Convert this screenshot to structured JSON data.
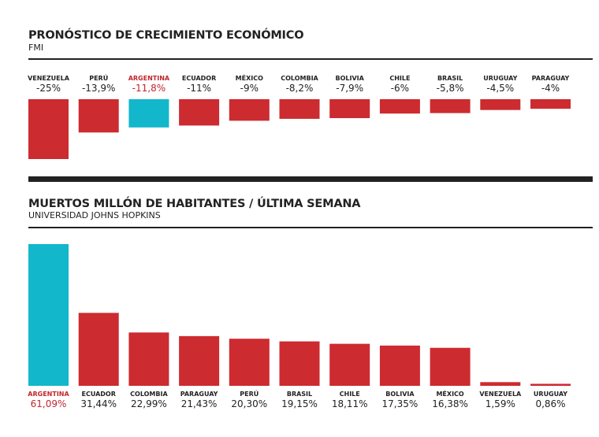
{
  "colors": {
    "bar": "#cc2b30",
    "highlight_bar": "#12b7cc",
    "highlight_text": "#c0272d",
    "rule": "#222222"
  },
  "chart_data": [
    {
      "type": "bar",
      "title": "PRONÓSTICO DE CRECIMIENTO ECONÓMICO",
      "subtitle": "FMI",
      "orientation": "vertical-negative",
      "highlight": "ARGENTINA",
      "categories": [
        "VENEZUELA",
        "PERÚ",
        "ARGENTINA",
        "ECUADOR",
        "MÉXICO",
        "COLOMBIA",
        "BOLIVIA",
        "CHILE",
        "BRASIL",
        "URUGUAY",
        "PARAGUAY"
      ],
      "values": [
        -25,
        -13.9,
        -11.8,
        -11,
        -9,
        -8.2,
        -7.9,
        -6,
        -5.8,
        -4.5,
        -4
      ],
      "value_labels": [
        "-25%",
        "-13,9%",
        "-11,8%",
        "-11%",
        "-9%",
        "-8,2%",
        "-7,9%",
        "-6%",
        "-5,8%",
        "-4,5%",
        "-4%"
      ],
      "ylim": [
        -25,
        0
      ]
    },
    {
      "type": "bar",
      "title": "MUERTOS MILLÓN DE HABITANTES / ÚLTIMA SEMANA",
      "subtitle": "UNIVERSIDAD JOHNS HOPKINS",
      "highlight": "ARGENTINA",
      "categories": [
        "ARGENTINA",
        "ECUADOR",
        "COLOMBIA",
        "PARAGUAY",
        "PERÚ",
        "BRASIL",
        "CHILE",
        "BOLIVIA",
        "MÉXICO",
        "VENEZUELA",
        "URUGUAY"
      ],
      "values": [
        61.09,
        31.44,
        22.99,
        21.43,
        20.3,
        19.15,
        18.11,
        17.35,
        16.38,
        1.59,
        0.86
      ],
      "value_labels": [
        "61,09%",
        "31,44%",
        "22,99%",
        "21,43%",
        "20,30%",
        "19,15%",
        "18,11%",
        "17,35%",
        "16,38%",
        "1,59%",
        "0,86%"
      ],
      "ylim": [
        0,
        61.09
      ]
    }
  ]
}
